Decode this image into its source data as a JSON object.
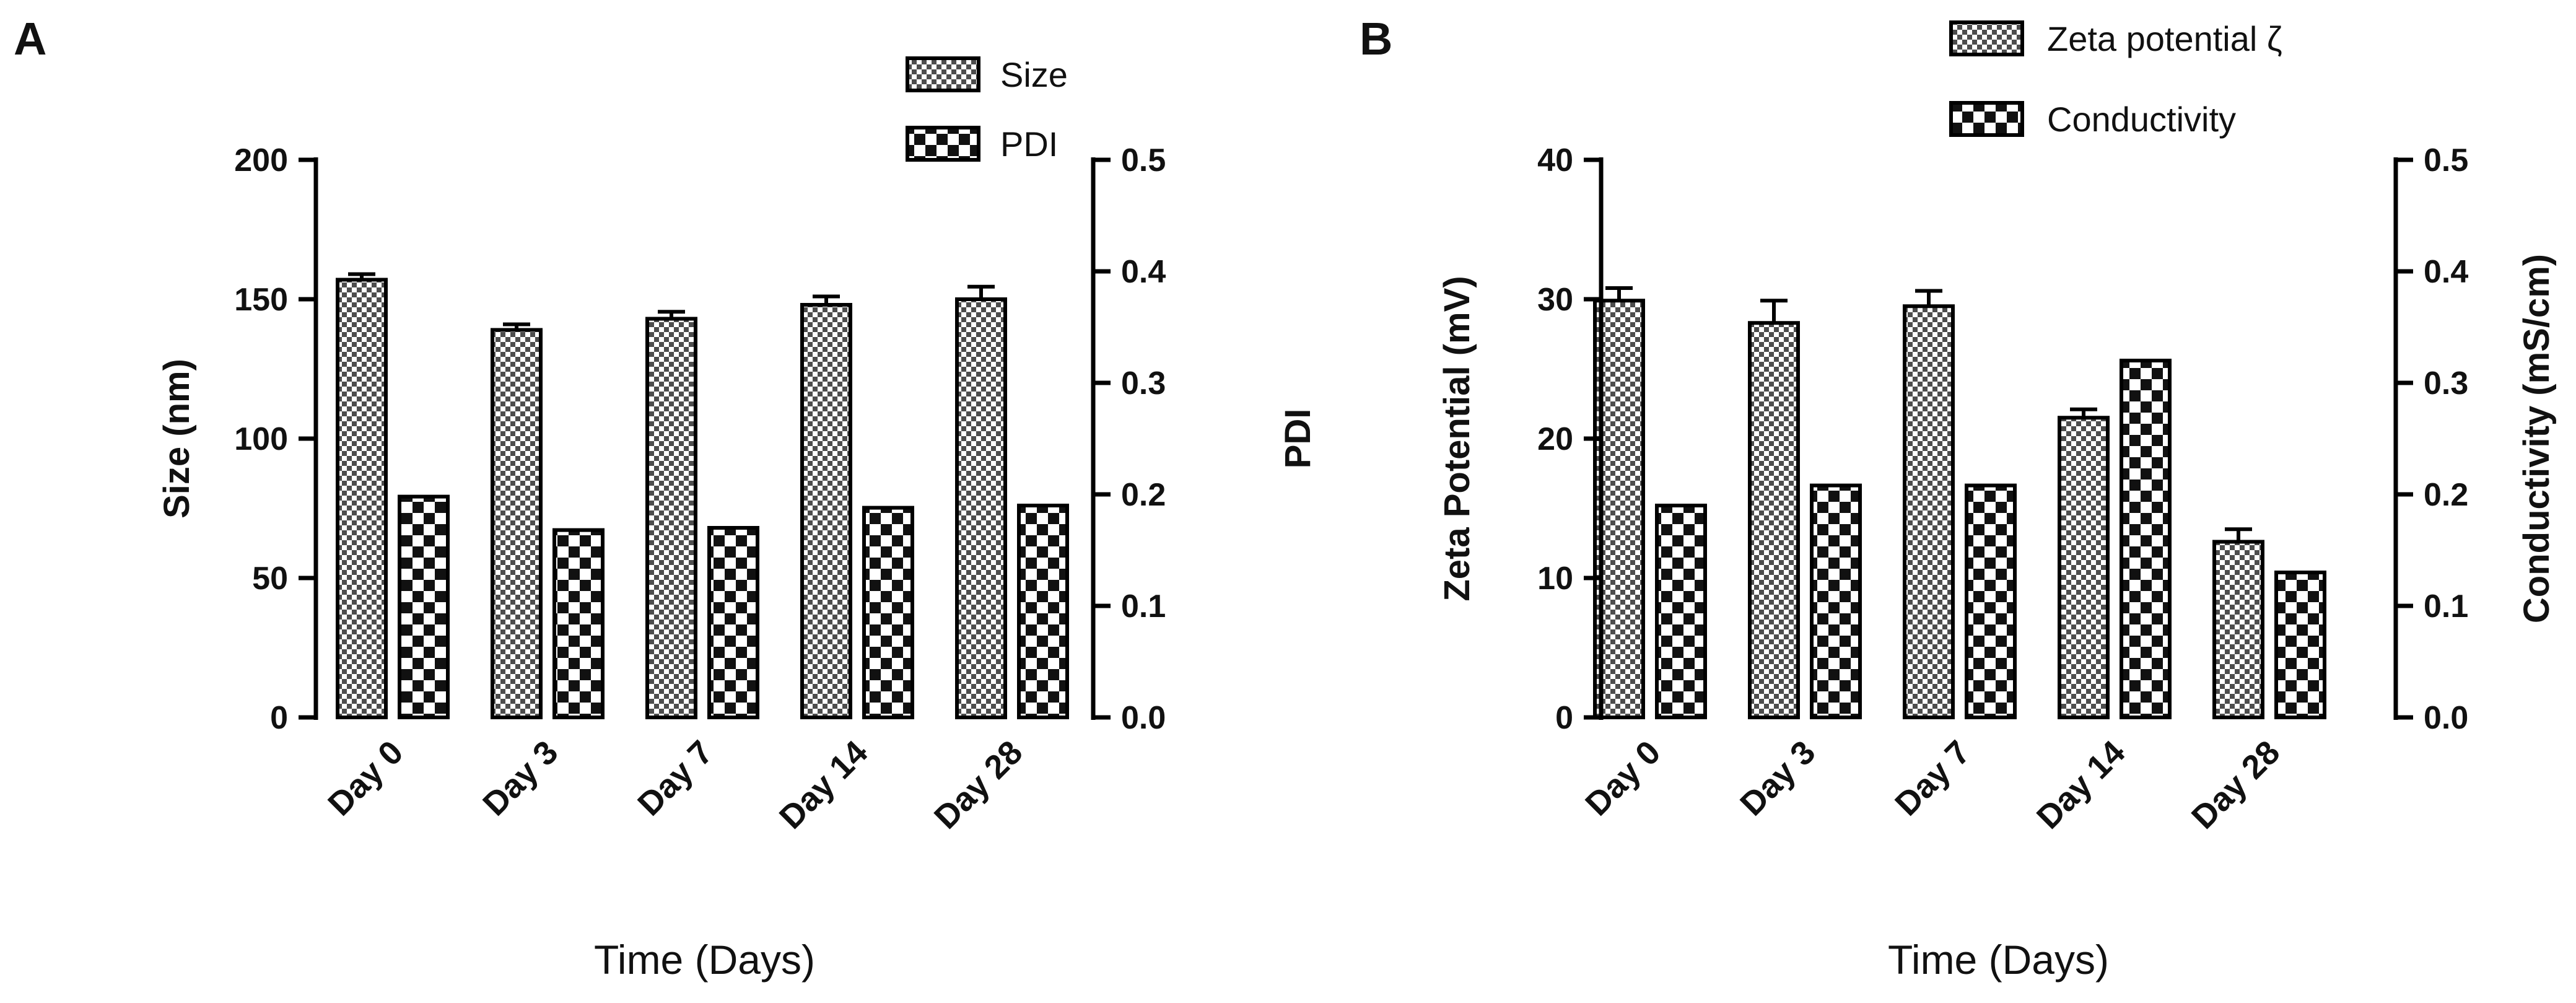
{
  "chart_data": [
    {
      "panel": "A",
      "type": "bar",
      "categories": [
        "Day 0",
        "Day 3",
        "Day 7",
        "Day 14",
        "Day 28"
      ],
      "xlabel": "Time (Days)",
      "ylabel": "Size (nm)",
      "ylabel_right": "PDI",
      "ylim": [
        0,
        200
      ],
      "yticks": [
        "0",
        "50",
        "100",
        "150",
        "200"
      ],
      "ylim_right": [
        0,
        0.5
      ],
      "yticks_right": [
        "0.0",
        "0.1",
        "0.2",
        "0.3",
        "0.4",
        "0.5"
      ],
      "legend_position": "top-right",
      "series": [
        {
          "name": "Size",
          "axis": "left",
          "pattern": "fine",
          "values": [
            157,
            139,
            143,
            148,
            150
          ],
          "errors": [
            2,
            2,
            2.5,
            3,
            4.5
          ]
        },
        {
          "name": "PDI",
          "axis": "right",
          "pattern": "checker",
          "values": [
            0.198,
            0.168,
            0.17,
            0.188,
            0.19
          ],
          "errors": [
            0,
            0,
            0,
            0,
            0
          ]
        }
      ]
    },
    {
      "panel": "B",
      "type": "bar",
      "categories": [
        "Day 0",
        "Day 3",
        "Day 7",
        "Day 14",
        "Day 28"
      ],
      "xlabel": "Time (Days)",
      "ylabel": "Zeta Potential (mV)",
      "ylabel_right": "Conductivity (mS/cm)",
      "ylim": [
        0,
        40
      ],
      "yticks": [
        "0",
        "10",
        "20",
        "30",
        "40"
      ],
      "ylim_right": [
        0,
        0.5
      ],
      "yticks_right": [
        "0.0",
        "0.1",
        "0.2",
        "0.3",
        "0.4",
        "0.5"
      ],
      "legend_position": "top-right",
      "series": [
        {
          "name": "Zeta potential ζ",
          "axis": "left",
          "pattern": "fine",
          "values": [
            29.9,
            28.3,
            29.5,
            21.5,
            12.6
          ],
          "errors": [
            0.9,
            1.6,
            1.1,
            0.6,
            0.9
          ]
        },
        {
          "name": "Conductivity",
          "axis": "right",
          "pattern": "checker",
          "values": [
            0.19,
            0.208,
            0.208,
            0.32,
            0.13
          ],
          "errors": [
            0,
            0,
            0,
            0,
            0
          ]
        }
      ]
    }
  ]
}
